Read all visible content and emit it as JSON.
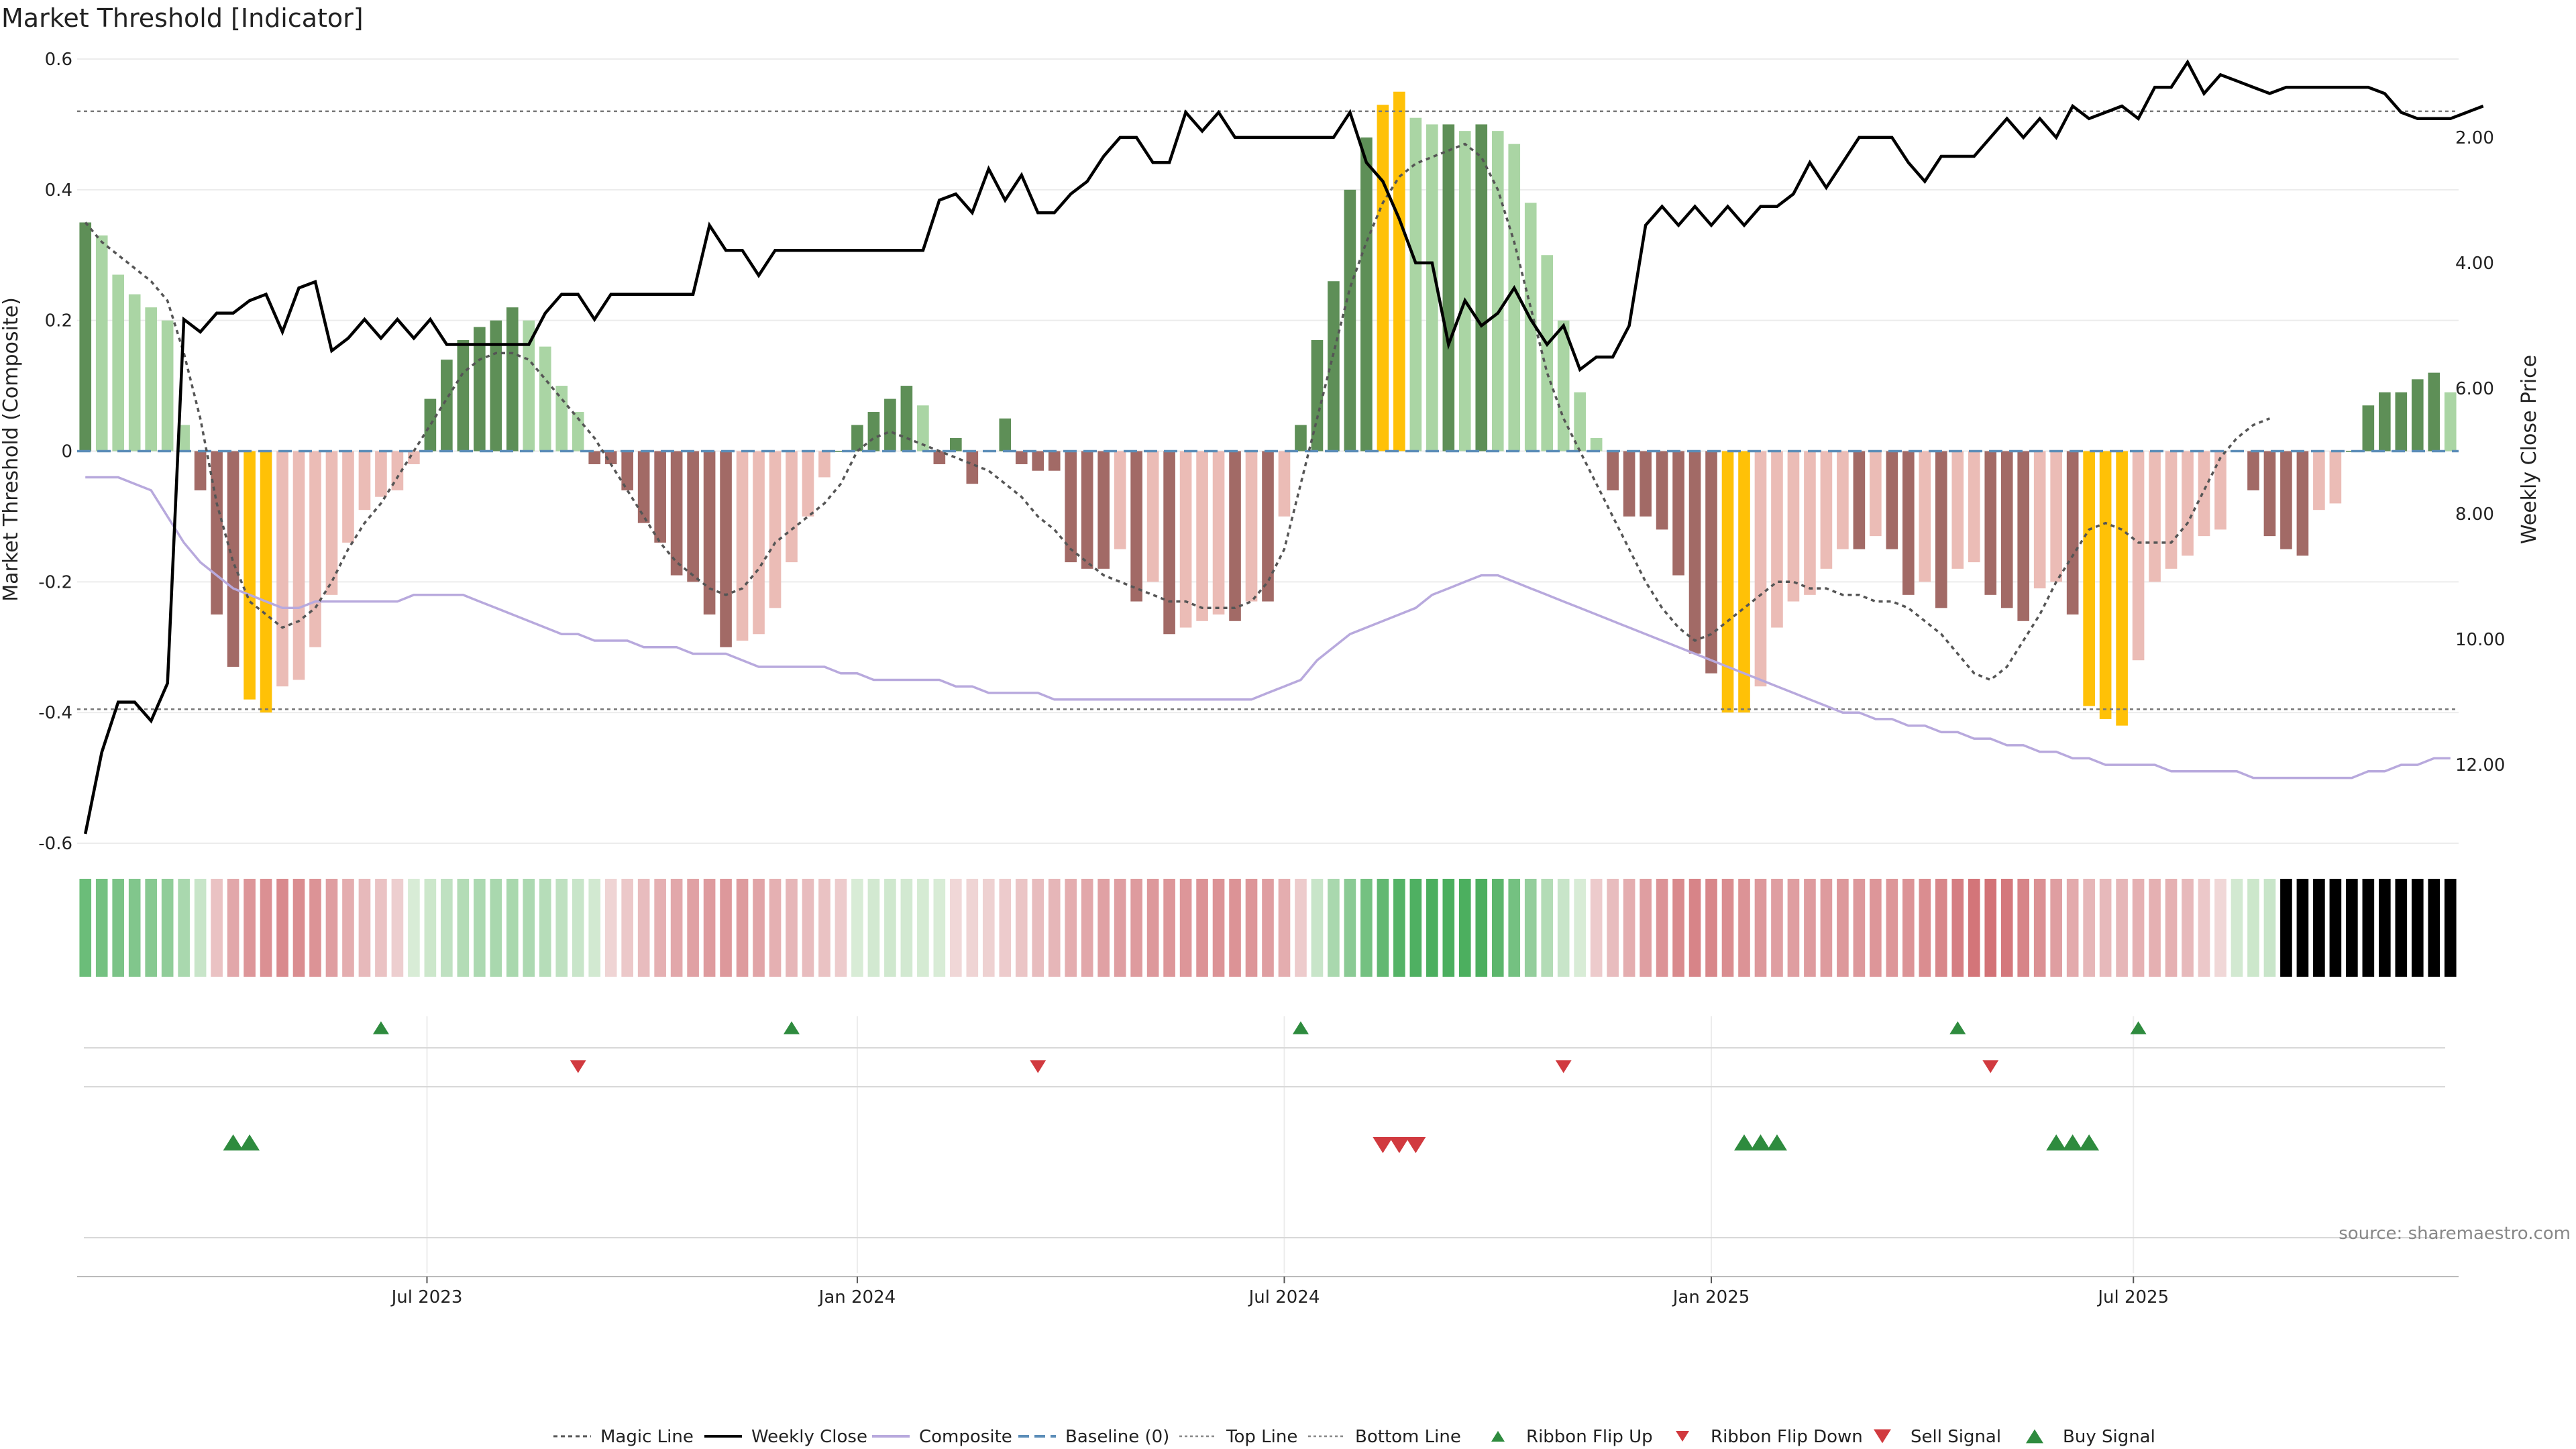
{
  "chart_data": {
    "type": "bar",
    "title": "Market Threshold [Indicator]",
    "ylabel": "Market Threshold (Composite)",
    "y2label": "Weekly Close Price",
    "ylim": [
      -0.6,
      0.6
    ],
    "y2lim": [
      0,
      13.5
    ],
    "yticks": [
      "0.6",
      "0.4",
      "0.2",
      "0",
      "-0.2",
      "-0.4",
      "-0.6"
    ],
    "y2ticks": [
      "12.00",
      "10.00",
      "8.00",
      "6.00",
      "4.00",
      "2.00"
    ],
    "xtick_labels": [
      "Jul 2023",
      "Jan 2024",
      "Jul 2024",
      "Jan 2025",
      "Jul 2025"
    ],
    "xtick_index": [
      21.3,
      47.5,
      73.5,
      99.5,
      125.2
    ],
    "top_line": 0.52,
    "bottom_line": -0.395,
    "composite": [
      0.35,
      0.33,
      0.27,
      0.24,
      0.22,
      0.2,
      0.04,
      -0.06,
      -0.25,
      -0.33,
      -0.38,
      -0.4,
      -0.36,
      -0.35,
      -0.3,
      -0.22,
      -0.14,
      -0.09,
      -0.07,
      -0.06,
      -0.02,
      0.08,
      0.14,
      0.17,
      0.19,
      0.2,
      0.22,
      0.2,
      0.16,
      0.1,
      0.06,
      -0.02,
      -0.02,
      -0.06,
      -0.11,
      -0.14,
      -0.19,
      -0.2,
      -0.25,
      -0.3,
      -0.29,
      -0.28,
      -0.24,
      -0.17,
      -0.1,
      -0.04,
      0,
      0.04,
      0.06,
      0.08,
      0.1,
      0.07,
      -0.02,
      0.02,
      -0.05,
      0,
      0.05,
      -0.02,
      -0.03,
      -0.03,
      -0.17,
      -0.18,
      -0.18,
      -0.15,
      -0.23,
      -0.2,
      -0.28,
      -0.27,
      -0.26,
      -0.25,
      -0.26,
      -0.23,
      -0.23,
      -0.1,
      0.04,
      0.17,
      0.26,
      0.4,
      0.48,
      0.53,
      0.55,
      0.51,
      0.5,
      0.5,
      0.49,
      0.5,
      0.49,
      0.47,
      0.38,
      0.3,
      0.2,
      0.09,
      0.02,
      -0.06,
      -0.1,
      -0.1,
      -0.12,
      -0.19,
      -0.31,
      -0.34,
      -0.4,
      -0.4,
      -0.36,
      -0.27,
      -0.23,
      -0.22,
      -0.18,
      -0.15,
      -0.15,
      -0.13,
      -0.15,
      -0.22,
      -0.2,
      -0.24,
      -0.18,
      -0.17,
      -0.22,
      -0.24,
      -0.26,
      -0.21,
      -0.2,
      -0.25,
      -0.39,
      -0.41,
      -0.42,
      -0.32,
      -0.2,
      -0.18,
      -0.16,
      -0.13,
      -0.12,
      0,
      -0.06,
      -0.13,
      -0.15,
      -0.16,
      -0.09,
      -0.08,
      0,
      0.07,
      0.09,
      0.09,
      0.11,
      0.12,
      0.09
    ],
    "magic_line": [
      0.35,
      0.32,
      0.3,
      0.28,
      0.26,
      0.23,
      0.15,
      0.05,
      -0.08,
      -0.17,
      -0.23,
      -0.25,
      -0.27,
      -0.26,
      -0.24,
      -0.2,
      -0.15,
      -0.11,
      -0.08,
      -0.04,
      0,
      0.04,
      0.08,
      0.12,
      0.14,
      0.15,
      0.15,
      0.14,
      0.11,
      0.08,
      0.05,
      0.02,
      -0.02,
      -0.06,
      -0.1,
      -0.14,
      -0.17,
      -0.19,
      -0.21,
      -0.22,
      -0.21,
      -0.18,
      -0.14,
      -0.12,
      -0.1,
      -0.08,
      -0.05,
      0,
      0.02,
      0.03,
      0.02,
      0.01,
      0,
      -0.01,
      -0.02,
      -0.03,
      -0.05,
      -0.07,
      -0.1,
      -0.12,
      -0.15,
      -0.17,
      -0.19,
      -0.2,
      -0.21,
      -0.22,
      -0.23,
      -0.23,
      -0.24,
      -0.24,
      -0.24,
      -0.23,
      -0.2,
      -0.15,
      -0.05,
      0.05,
      0.15,
      0.25,
      0.32,
      0.38,
      0.42,
      0.44,
      0.45,
      0.46,
      0.47,
      0.45,
      0.4,
      0.32,
      0.22,
      0.12,
      0.05,
      0,
      -0.05,
      -0.1,
      -0.15,
      -0.2,
      -0.24,
      -0.27,
      -0.29,
      -0.28,
      -0.26,
      -0.24,
      -0.22,
      -0.2,
      -0.2,
      -0.21,
      -0.21,
      -0.22,
      -0.22,
      -0.23,
      -0.23,
      -0.24,
      -0.26,
      -0.28,
      -0.31,
      -0.34,
      -0.35,
      -0.33,
      -0.29,
      -0.25,
      -0.2,
      -0.16,
      -0.12,
      -0.11,
      -0.12,
      -0.14,
      -0.14,
      -0.14,
      -0.11,
      -0.06,
      -0.01,
      0.02,
      0.04,
      0.05
    ],
    "weekly_close": [
      13.1,
      11.8,
      11.0,
      11.0,
      11.3,
      10.7,
      4.9,
      5.1,
      4.8,
      4.8,
      4.6,
      4.5,
      5.1,
      4.4,
      4.3,
      5.4,
      5.2,
      4.9,
      5.2,
      4.9,
      5.2,
      4.9,
      5.3,
      5.3,
      5.3,
      5.3,
      5.3,
      5.3,
      4.8,
      4.5,
      4.5,
      4.9,
      4.5,
      4.5,
      4.5,
      4.5,
      4.5,
      4.5,
      3.4,
      3.8,
      3.8,
      4.2,
      3.8,
      3.8,
      3.8,
      3.8,
      3.8,
      3.8,
      3.8,
      3.8,
      3.8,
      3.8,
      3.0,
      2.9,
      3.2,
      2.5,
      3.0,
      2.6,
      3.2,
      3.2,
      2.9,
      2.7,
      2.3,
      2.0,
      2.0,
      2.4,
      2.4,
      1.6,
      1.9,
      1.6,
      2.0,
      2.0,
      2.0,
      2.0,
      2.0,
      2.0,
      2.0,
      1.6,
      2.4,
      2.7,
      3.3,
      4.0,
      4.0,
      5.3,
      4.6,
      5.0,
      4.8,
      4.4,
      4.9,
      5.3,
      5.0,
      5.7,
      5.5,
      5.5,
      5.0,
      3.4,
      3.1,
      3.4,
      3.1,
      3.4,
      3.1,
      3.4,
      3.1,
      3.1,
      2.9,
      2.4,
      2.8,
      2.4,
      2.0,
      2.0,
      2.0,
      2.4,
      2.7,
      2.3,
      2.3,
      2.3,
      2.0,
      1.7,
      2.0,
      1.7,
      2.0,
      1.5,
      1.7,
      1.6,
      1.5,
      1.7,
      1.2,
      1.2,
      0.8,
      1.3,
      1.0,
      1.1,
      1.2,
      1.3,
      1.2,
      1.2,
      1.2,
      1.2,
      1.2,
      1.2,
      1.3,
      1.6,
      1.7,
      1.7,
      1.7,
      1.6,
      1.5
    ],
    "composite_smooth": [
      -0.04,
      -0.04,
      -0.04,
      -0.05,
      -0.06,
      -0.1,
      -0.14,
      -0.17,
      -0.19,
      -0.21,
      -0.22,
      -0.23,
      -0.24,
      -0.24,
      -0.23,
      -0.23,
      -0.23,
      -0.23,
      -0.23,
      -0.23,
      -0.22,
      -0.22,
      -0.22,
      -0.22,
      -0.23,
      -0.24,
      -0.25,
      -0.26,
      -0.27,
      -0.28,
      -0.28,
      -0.29,
      -0.29,
      -0.29,
      -0.3,
      -0.3,
      -0.3,
      -0.31,
      -0.31,
      -0.31,
      -0.32,
      -0.33,
      -0.33,
      -0.33,
      -0.33,
      -0.33,
      -0.34,
      -0.34,
      -0.35,
      -0.35,
      -0.35,
      -0.35,
      -0.35,
      -0.36,
      -0.36,
      -0.37,
      -0.37,
      -0.37,
      -0.37,
      -0.38,
      -0.38,
      -0.38,
      -0.38,
      -0.38,
      -0.38,
      -0.38,
      -0.38,
      -0.38,
      -0.38,
      -0.38,
      -0.38,
      -0.38,
      -0.37,
      -0.36,
      -0.35,
      -0.32,
      -0.3,
      -0.28,
      -0.27,
      -0.26,
      -0.25,
      -0.24,
      -0.22,
      -0.21,
      -0.2,
      -0.19,
      -0.19,
      -0.2,
      -0.21,
      -0.22,
      -0.23,
      -0.24,
      -0.25,
      -0.26,
      -0.27,
      -0.28,
      -0.29,
      -0.3,
      -0.31,
      -0.32,
      -0.33,
      -0.34,
      -0.35,
      -0.36,
      -0.37,
      -0.38,
      -0.39,
      -0.4,
      -0.4,
      -0.41,
      -0.41,
      -0.42,
      -0.42,
      -0.43,
      -0.43,
      -0.44,
      -0.44,
      -0.45,
      -0.45,
      -0.46,
      -0.46,
      -0.47,
      -0.47,
      -0.48,
      -0.48,
      -0.48,
      -0.48,
      -0.49,
      -0.49,
      -0.49,
      -0.49,
      -0.49,
      -0.5,
      -0.5,
      -0.5,
      -0.5,
      -0.5,
      -0.5,
      -0.5,
      -0.49,
      -0.49,
      -0.48,
      -0.48,
      -0.47,
      -0.47
    ],
    "ribbon_flip_up_index": [
      18.5,
      43.5,
      74.5,
      114.5,
      125.5
    ],
    "ribbon_flip_down_index": [
      30.5,
      58.5,
      90.5,
      116.5
    ],
    "sell_signal_index": [
      79.5,
      80.5,
      81.5
    ],
    "buy_signal_index": [
      9.5,
      10.5,
      101.5,
      102.5,
      103.5,
      120.5,
      121.5,
      122.5
    ],
    "legend": [
      "Magic Line",
      "Weekly Close",
      "Composite",
      "Baseline (0)",
      "Top Line",
      "Bottom Line",
      "Ribbon Flip Up",
      "Ribbon Flip Down",
      "Sell Signal",
      "Buy Signal"
    ],
    "source": "source: sharemaestro.com",
    "colors": {
      "bull_light": "#aad5a4",
      "bull_dark": "#5e8f57",
      "bear_light": "#ebbcb6",
      "bear_dark": "#a26a66",
      "extreme": "#ffc107",
      "close": "#000000",
      "smooth": "#b8a9dd",
      "baseline": "#5b8db8",
      "up": "#2e8b3e",
      "down": "#d13a3f"
    }
  }
}
